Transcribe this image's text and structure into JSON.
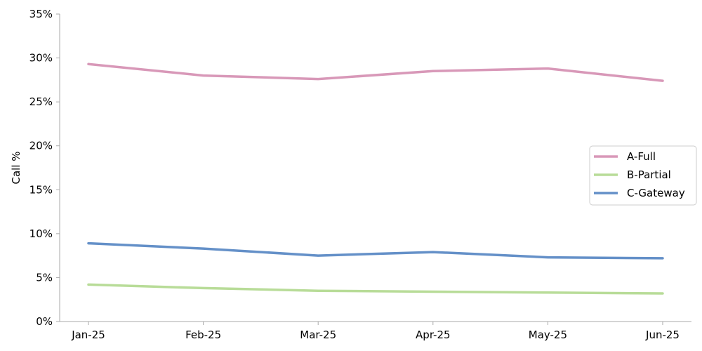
{
  "chart_data": {
    "type": "line",
    "title": "",
    "xlabel": "",
    "ylabel": "Call %",
    "categories": [
      "Jan-25",
      "Feb-25",
      "Mar-25",
      "Apr-25",
      "May-25",
      "Jun-25"
    ],
    "ylim": [
      0,
      35
    ],
    "yticks": [
      "0%",
      "5%",
      "10%",
      "15%",
      "20%",
      "25%",
      "30%",
      "35%"
    ],
    "grid": false,
    "legend_position": "center-right",
    "series": [
      {
        "name": "A-Full",
        "color": "#d898b8",
        "values": [
          29.3,
          28.0,
          27.6,
          28.5,
          28.8,
          27.4
        ]
      },
      {
        "name": "B-Partial",
        "color": "#b8dc98",
        "values": [
          4.2,
          3.8,
          3.5,
          3.4,
          3.3,
          3.2
        ]
      },
      {
        "name": "C-Gateway",
        "color": "#6490c8",
        "values": [
          8.9,
          8.3,
          7.5,
          7.9,
          7.3,
          7.2
        ]
      }
    ]
  }
}
